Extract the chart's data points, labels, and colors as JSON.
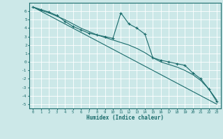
{
  "xlabel": "Humidex (Indice chaleur)",
  "background_color": "#cce8e8",
  "grid_color": "#ffffff",
  "line_color": "#1a6b6b",
  "xlim": [
    -0.5,
    23.5
  ],
  "ylim": [
    -5.5,
    7.0
  ],
  "xticks": [
    0,
    1,
    2,
    3,
    4,
    5,
    6,
    7,
    8,
    9,
    10,
    11,
    12,
    13,
    14,
    15,
    16,
    17,
    18,
    19,
    20,
    21,
    22,
    23
  ],
  "yticks": [
    -5,
    -4,
    -3,
    -2,
    -1,
    0,
    1,
    2,
    3,
    4,
    5,
    6
  ],
  "series_marker": {
    "x": [
      0,
      1,
      2,
      3,
      4,
      5,
      6,
      7,
      8,
      9,
      10,
      11,
      12,
      13,
      14,
      15,
      16,
      17,
      18,
      19,
      20,
      21,
      22,
      23
    ],
    "y": [
      6.5,
      6.2,
      5.9,
      5.5,
      4.8,
      4.2,
      3.8,
      3.4,
      3.2,
      3.0,
      2.8,
      5.8,
      4.5,
      4.0,
      3.3,
      0.5,
      0.2,
      0.0,
      -0.2,
      -0.4,
      -1.3,
      -2.0,
      -3.2,
      -4.7
    ]
  },
  "series_smooth": {
    "x": [
      0,
      1,
      2,
      3,
      4,
      5,
      6,
      7,
      8,
      9,
      10,
      11,
      12,
      13,
      14,
      15,
      16,
      17,
      18,
      19,
      20,
      21,
      22,
      23
    ],
    "y": [
      6.5,
      6.1,
      5.8,
      5.4,
      5.0,
      4.5,
      4.0,
      3.6,
      3.2,
      2.9,
      2.6,
      2.3,
      2.0,
      1.6,
      1.1,
      0.5,
      0.0,
      -0.3,
      -0.6,
      -1.0,
      -1.5,
      -2.2,
      -3.2,
      -4.5
    ]
  },
  "series_line": {
    "x": [
      0,
      23
    ],
    "y": [
      6.5,
      -5.0
    ]
  }
}
